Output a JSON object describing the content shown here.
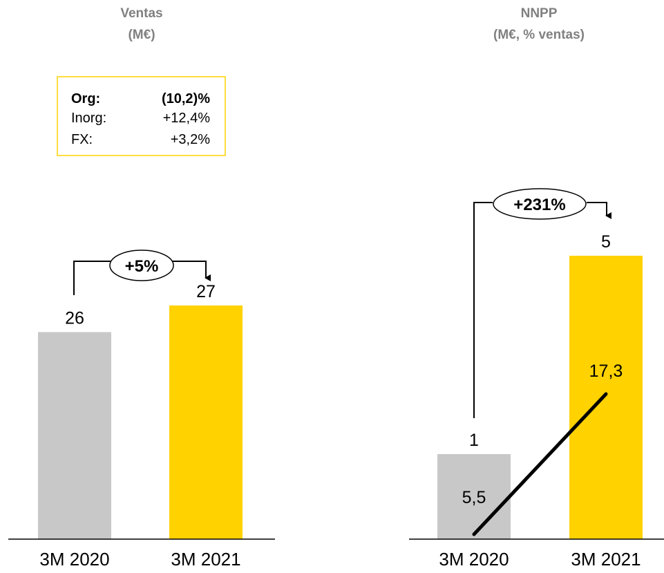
{
  "colors": {
    "prior_bar": "#C8C8C8",
    "current_bar": "#FFD200",
    "box_border": "#FFD200",
    "text": "#000000",
    "line": "#000000"
  },
  "chart_data": [
    {
      "type": "bar",
      "title": "Ventas",
      "subtitle": "(M€)",
      "categories": [
        "3M 2020",
        "3M 2021"
      ],
      "values": [
        26,
        27
      ],
      "value_labels": [
        "26",
        "27"
      ],
      "growth_label": "+5%",
      "breakdown": [
        {
          "label": "Org:",
          "value": "(10,2)%",
          "bold": true
        },
        {
          "label": "Inorg:",
          "value": "+12,4%",
          "bold": false
        },
        {
          "label": "FX:",
          "value": "+3,2%",
          "bold": false
        }
      ]
    },
    {
      "type": "bar",
      "title": "NNPP",
      "subtitle": "(M€, % ventas)",
      "categories": [
        "3M 2020",
        "3M 2021"
      ],
      "values": [
        1,
        5
      ],
      "value_labels": [
        "1",
        "5"
      ],
      "growth_label": "+231%",
      "secondary": {
        "type": "line",
        "unit": "% ventas",
        "values": [
          5.5,
          17.3
        ],
        "value_labels": [
          "5,5",
          "17,3"
        ]
      }
    }
  ]
}
